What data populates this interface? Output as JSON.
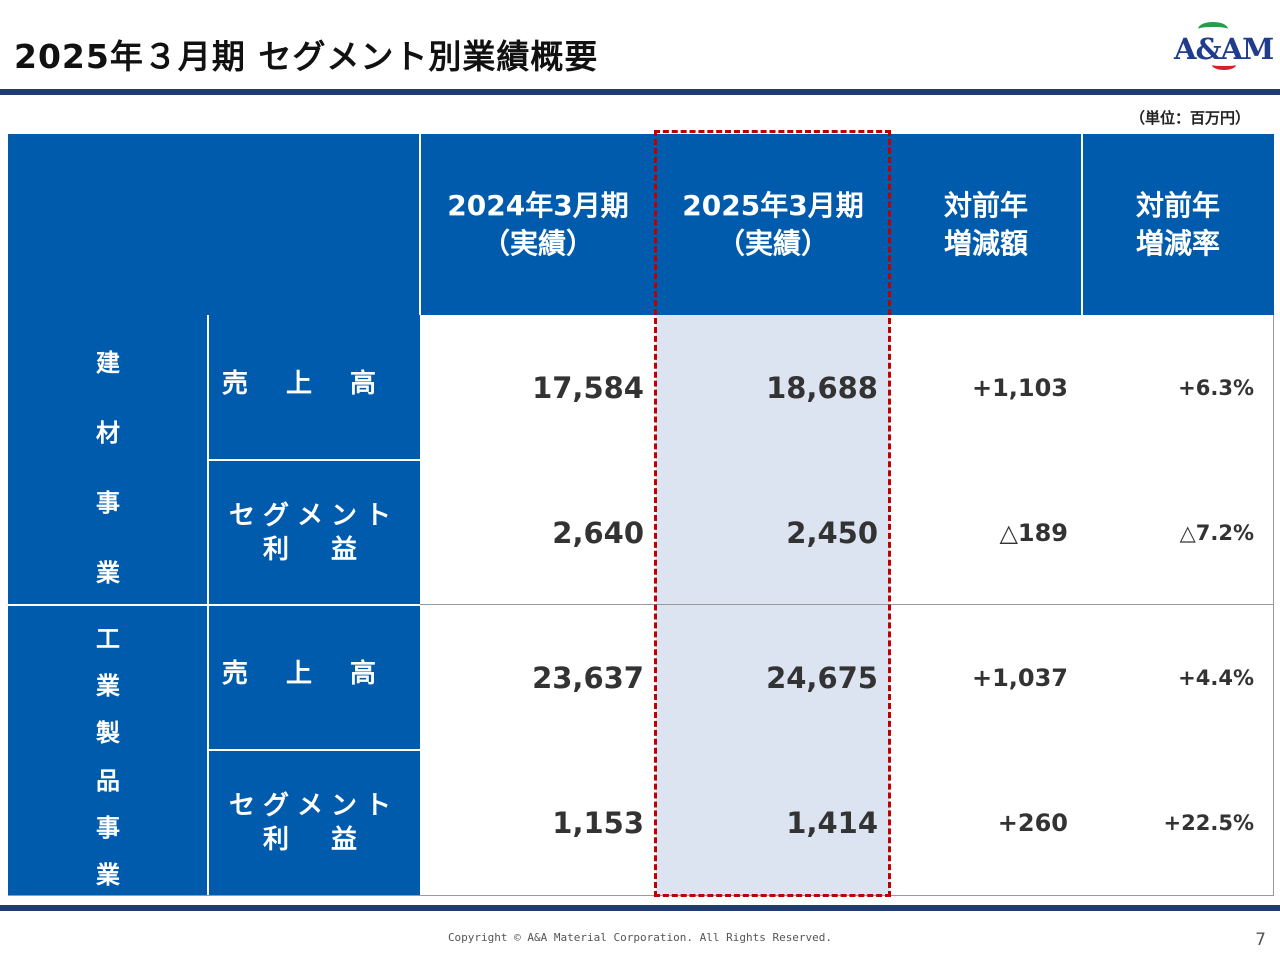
{
  "title": "2025年３月期 セグメント別業績概要",
  "logo_text": "A&AM",
  "unit": "（単位：百万円）",
  "header": {
    "col_2024": [
      "2024年3月期",
      "（実績）"
    ],
    "col_2025": [
      "2025年3月期",
      "（実績）"
    ],
    "col_diff": [
      "対前年",
      "増減額"
    ],
    "col_rate": [
      "対前年",
      "増減率"
    ]
  },
  "segments": [
    {
      "name_chars": [
        "建",
        "材",
        "事",
        "業"
      ],
      "rows": [
        {
          "label_lines": [
            "売　上　高"
          ],
          "fy2024": "17,584",
          "fy2025": "18,688",
          "diff": "+1,103",
          "rate": "+6.3%"
        },
        {
          "label_lines": [
            "セグメント",
            "利　益"
          ],
          "fy2024": "2,640",
          "fy2025": "2,450",
          "diff": "△189",
          "rate": "△7.2%"
        }
      ]
    },
    {
      "name_chars": [
        "工",
        "業",
        "製",
        "品",
        "事",
        "業"
      ],
      "rows": [
        {
          "label_lines": [
            "売　上　高"
          ],
          "fy2024": "23,637",
          "fy2025": "24,675",
          "diff": "+1,037",
          "rate": "+4.4%"
        },
        {
          "label_lines": [
            "セグメント",
            "利　益"
          ],
          "fy2024": "1,153",
          "fy2025": "1,414",
          "diff": "+260",
          "rate": "+22.5%"
        }
      ]
    }
  ],
  "footer": {
    "copyright": "Copyright © A&A Material Corporation. All Rights Reserved.",
    "page_number": "7"
  },
  "colors": {
    "header_blue": "#005bac",
    "highlight": "#dce4f2",
    "dashed_border": "#c00000",
    "rule_navy": "#1f3d73"
  }
}
